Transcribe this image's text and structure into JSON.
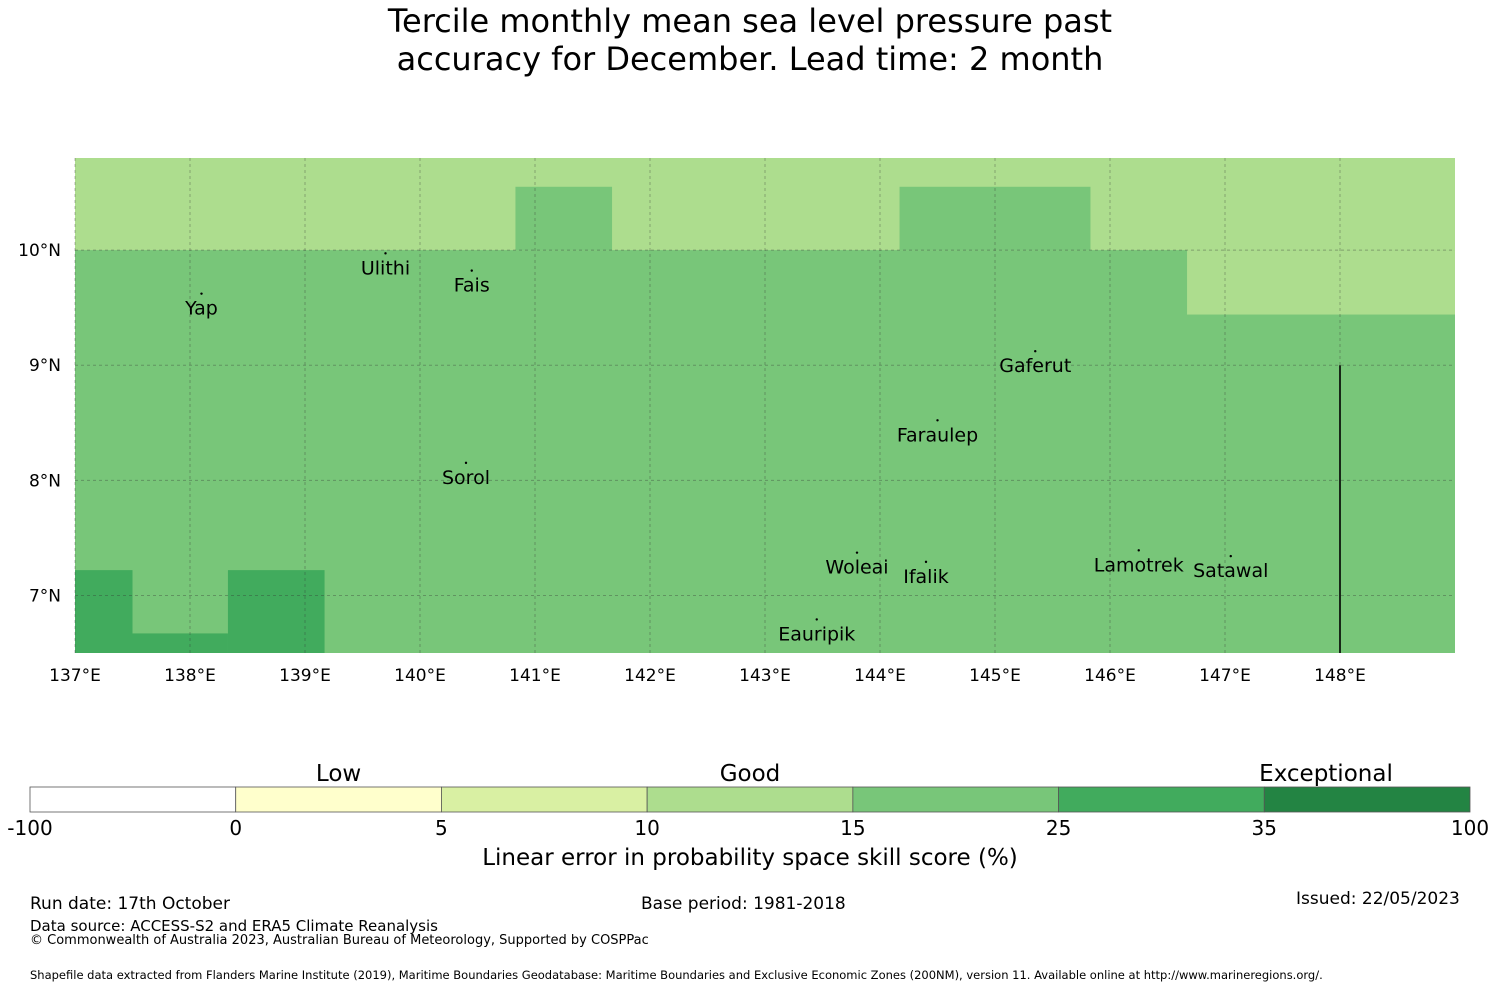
{
  "title": {
    "line1": "Tercile monthly mean sea level pressure past",
    "line2": "accuracy for December. Lead time: 2 month"
  },
  "map": {
    "lon_range": [
      137.0,
      149.0
    ],
    "lat_range": [
      6.5,
      10.8
    ],
    "lon_ticks": [
      137,
      138,
      139,
      140,
      141,
      142,
      143,
      144,
      145,
      146,
      147,
      148
    ],
    "lon_tick_labels": [
      "137°E",
      "138°E",
      "139°E",
      "140°E",
      "141°E",
      "142°E",
      "143°E",
      "144°E",
      "145°E",
      "146°E",
      "147°E",
      "148°E"
    ],
    "lat_ticks": [
      10,
      9,
      8,
      7
    ],
    "lat_tick_labels": [
      "10°N",
      "9°N",
      "8°N",
      "7°N"
    ],
    "base_color": "#78c679",
    "cells": [
      {
        "lon0": 137.0,
        "lon1": 149.0,
        "lat0": 10.0,
        "lat1": 10.8,
        "color": "#addd8e"
      },
      {
        "lon0": 140.83,
        "lon1": 141.67,
        "lat0": 10.0,
        "lat1": 10.55,
        "color": "#78c679"
      },
      {
        "lon0": 144.17,
        "lon1": 145.83,
        "lat0": 10.0,
        "lat1": 10.55,
        "color": "#78c679"
      },
      {
        "lon0": 146.67,
        "lon1": 149.0,
        "lat0": 9.44,
        "lat1": 10.0,
        "color": "#addd8e"
      },
      {
        "lon0": 137.0,
        "lon1": 137.5,
        "lat0": 6.5,
        "lat1": 7.22,
        "color": "#41ab5d"
      },
      {
        "lon0": 137.5,
        "lon1": 138.33,
        "lat0": 6.5,
        "lat1": 6.67,
        "color": "#41ab5d"
      },
      {
        "lon0": 138.33,
        "lon1": 139.17,
        "lat0": 6.5,
        "lat1": 7.22,
        "color": "#41ab5d"
      }
    ],
    "boundary_line": {
      "lon": 148.0,
      "lat0": 6.5,
      "lat1": 9.0
    },
    "places": [
      {
        "name": "Yap",
        "lon": 138.1,
        "lat": 9.5
      },
      {
        "name": "Ulithi",
        "lon": 139.7,
        "lat": 9.85
      },
      {
        "name": "Fais",
        "lon": 140.45,
        "lat": 9.7
      },
      {
        "name": "Gaferut",
        "lon": 145.35,
        "lat": 9.0
      },
      {
        "name": "Faraulep",
        "lon": 144.5,
        "lat": 8.4
      },
      {
        "name": "Sorol",
        "lon": 140.4,
        "lat": 8.03
      },
      {
        "name": "Woleai",
        "lon": 143.8,
        "lat": 7.25
      },
      {
        "name": "Ifalik",
        "lon": 144.4,
        "lat": 7.17
      },
      {
        "name": "Lamotrek",
        "lon": 146.25,
        "lat": 7.27
      },
      {
        "name": "Satawal",
        "lon": 147.05,
        "lat": 7.22
      },
      {
        "name": "Eauripik",
        "lon": 143.45,
        "lat": 6.67
      }
    ]
  },
  "legend": {
    "category_labels": [
      "Low",
      "Good",
      "Exceptional"
    ],
    "bins": [
      {
        "from": "-100",
        "to": "0",
        "color": "#ffffff"
      },
      {
        "from": "0",
        "to": "5",
        "color": "#ffffcc"
      },
      {
        "from": "5",
        "to": "10",
        "color": "#d9f0a3"
      },
      {
        "from": "10",
        "to": "15",
        "color": "#addd8e"
      },
      {
        "from": "15",
        "to": "25",
        "color": "#78c679"
      },
      {
        "from": "25",
        "to": "35",
        "color": "#41ab5d"
      },
      {
        "from": "35",
        "to": "100",
        "color": "#238443"
      }
    ],
    "tick_labels": [
      "-100",
      "0",
      "5",
      "10",
      "15",
      "25",
      "35",
      "100"
    ],
    "title": "Linear error in probability space skill score (%)"
  },
  "footer": {
    "run_date": "Run date: 17th October",
    "data_source": "Data source: ACCESS-S2 and ERA5 Climate Reanalysis",
    "copyright": "© Commonwealth of Australia 2023, Australian Bureau of Meteorology, Supported by COSPPac",
    "base_period": "Base period: 1981-2018",
    "issued": "Issued: 22/05/2023",
    "shapefile": "Shapefile data extracted from Flanders Marine Institute (2019), Maritime Boundaries Geodatabase: Maritime Boundaries and Exclusive Economic Zones (200NM), version 11. Available online at http://www.marineregions.org/."
  }
}
